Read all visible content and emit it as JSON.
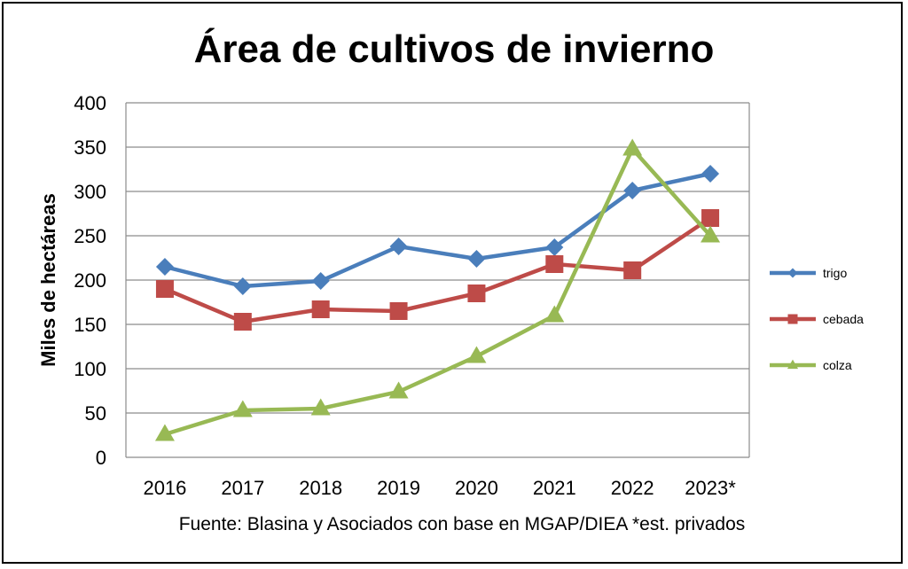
{
  "chart_data": {
    "type": "line",
    "title": "Área de cultivos de invierno",
    "ylabel": "Miles de hectáreas",
    "xlabel": "",
    "categories": [
      "2016",
      "2017",
      "2018",
      "2019",
      "2020",
      "2021",
      "2022",
      "2023*"
    ],
    "ylim": [
      0,
      400
    ],
    "yticks": [
      "0",
      "50",
      "100",
      "150",
      "200",
      "250",
      "300",
      "350",
      "400"
    ],
    "grid": true,
    "legend_position": "right",
    "series": [
      {
        "name": "trigo",
        "color": "#4a7ebb",
        "marker": "diamond",
        "values": [
          215,
          193,
          199,
          238,
          224,
          237,
          301,
          320
        ]
      },
      {
        "name": "cebada",
        "color": "#be4b48",
        "marker": "square",
        "values": [
          190,
          153,
          167,
          165,
          185,
          218,
          211,
          270
        ]
      },
      {
        "name": "colza",
        "color": "#98b954",
        "marker": "triangle",
        "values": [
          26,
          53,
          55,
          74,
          114,
          160,
          348,
          250
        ]
      }
    ],
    "source_note": "Fuente: Blasina y Asociados con base en MGAP/DIEA *est. privados"
  }
}
